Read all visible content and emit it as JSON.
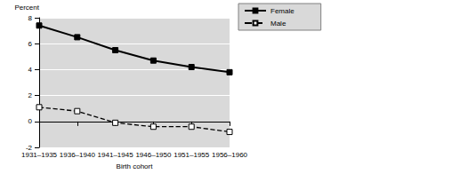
{
  "chart_data": {
    "type": "line",
    "y_label": "Percent",
    "x_label": "Birth cohort",
    "categories": [
      "1931–1935",
      "1936–1940",
      "1941–1945",
      "1946–1950",
      "1951–1955",
      "1956–1960"
    ],
    "series": [
      {
        "name": "Female",
        "color": "#000000",
        "marker": "square",
        "line_style": "solid",
        "values": [
          7.4,
          6.5,
          5.5,
          4.7,
          4.2,
          3.8
        ]
      },
      {
        "name": "Male",
        "color": "#000000",
        "marker": "open-square",
        "line_style": "dashed",
        "values": [
          1.1,
          0.8,
          -0.1,
          -0.4,
          -0.4,
          -0.8
        ]
      }
    ],
    "ylim": [
      -2,
      8
    ],
    "yticks": [
      -2,
      0,
      2,
      4,
      6,
      8
    ],
    "grid": true,
    "legend": "upper right"
  }
}
